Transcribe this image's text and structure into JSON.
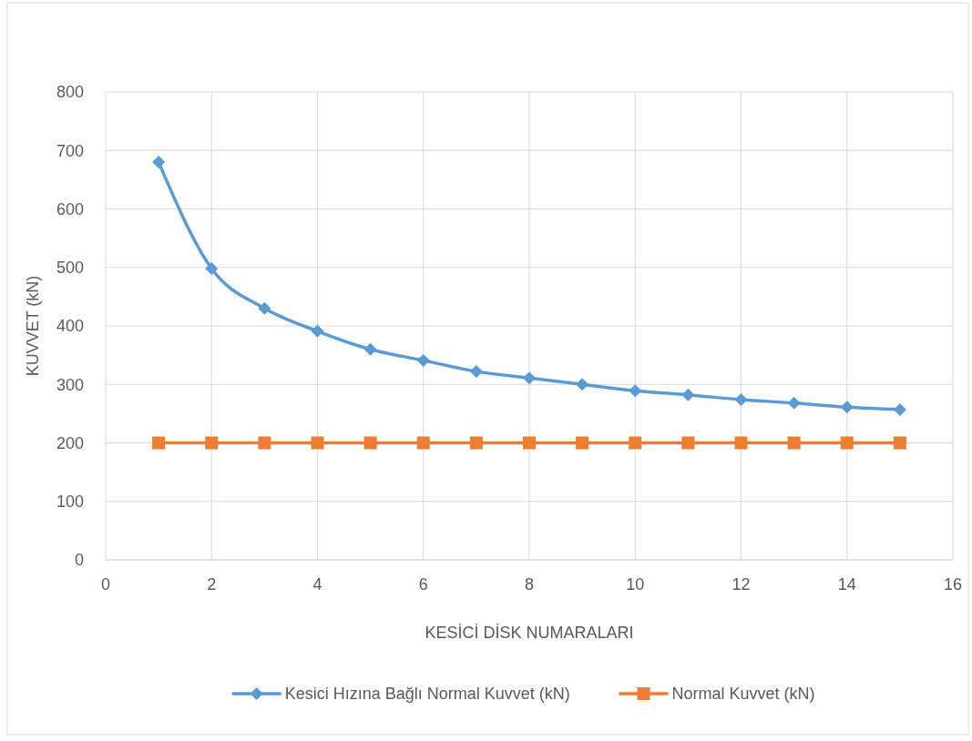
{
  "chart_data": {
    "type": "line",
    "xlabel": "KESİCİ DİSK NUMARALARI",
    "ylabel": "KUVVET (kN)",
    "x": [
      1,
      2,
      3,
      4,
      5,
      6,
      7,
      8,
      9,
      10,
      11,
      12,
      13,
      14,
      15
    ],
    "series": [
      {
        "name": "Kesici Hızına Bağlı Normal Kuvvet (kN)",
        "color": "#5b9bd5",
        "marker": "diamond",
        "values": [
          680,
          498,
          430,
          391,
          360,
          341,
          322,
          311,
          300,
          289,
          282,
          274,
          268,
          261,
          257
        ]
      },
      {
        "name": "Normal Kuvvet (kN)",
        "color": "#ed7d31",
        "marker": "square",
        "values": [
          200,
          200,
          200,
          200,
          200,
          200,
          200,
          200,
          200,
          200,
          200,
          200,
          200,
          200,
          200
        ]
      }
    ],
    "xlim": [
      0,
      16
    ],
    "xticks": [
      0,
      2,
      4,
      6,
      8,
      10,
      12,
      14,
      16
    ],
    "ylim": [
      0,
      800
    ],
    "yticks": [
      0,
      100,
      200,
      300,
      400,
      500,
      600,
      700,
      800
    ],
    "grid": true,
    "legend": "bottom",
    "line_style": "solid"
  }
}
